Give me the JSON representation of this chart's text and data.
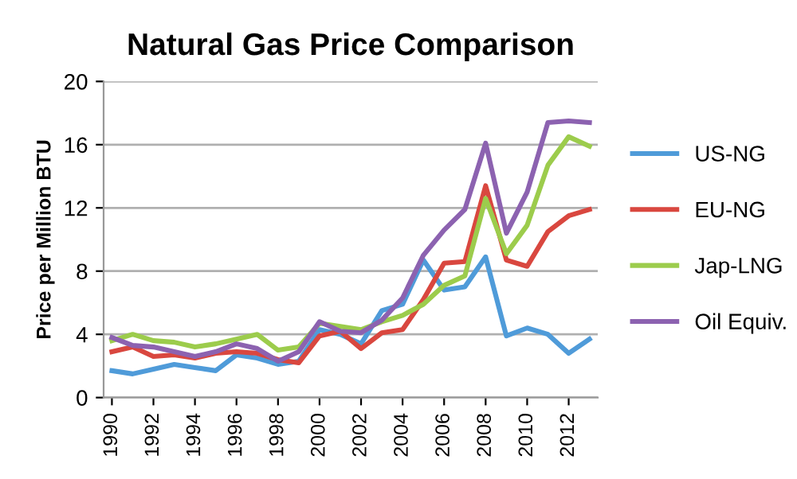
{
  "chart_data": {
    "type": "line",
    "title": "Natural Gas Price Comparison",
    "ylabel": "Price per Million BTU",
    "x": [
      1990,
      1991,
      1992,
      1993,
      1994,
      1995,
      1996,
      1997,
      1998,
      1999,
      2000,
      2001,
      2002,
      2003,
      2004,
      2005,
      2006,
      2007,
      2008,
      2009,
      2010,
      2011,
      2012,
      2013
    ],
    "series": [
      {
        "name": "US-NG",
        "color": "#4f9bd9",
        "values": [
          1.7,
          1.5,
          1.8,
          2.1,
          1.9,
          1.7,
          2.7,
          2.5,
          2.1,
          2.3,
          4.3,
          4.0,
          3.4,
          5.5,
          5.9,
          8.7,
          6.8,
          7.0,
          8.9,
          3.9,
          4.4,
          4.0,
          2.8,
          3.7
        ]
      },
      {
        "name": "EU-NG",
        "color": "#d9473f",
        "values": [
          2.9,
          3.2,
          2.6,
          2.7,
          2.5,
          2.8,
          2.9,
          2.8,
          2.4,
          2.2,
          3.9,
          4.2,
          3.1,
          4.1,
          4.3,
          6.2,
          8.5,
          8.6,
          13.4,
          8.7,
          8.3,
          10.5,
          11.5,
          11.9
        ]
      },
      {
        "name": "Jap-LNG",
        "color": "#9ccc4c",
        "values": [
          3.6,
          4.0,
          3.6,
          3.5,
          3.2,
          3.4,
          3.7,
          4.0,
          3.0,
          3.2,
          4.7,
          4.5,
          4.3,
          4.8,
          5.2,
          5.9,
          7.1,
          7.7,
          12.6,
          9.1,
          10.9,
          14.7,
          16.5,
          15.9
        ]
      },
      {
        "name": "Oil Equiv.",
        "color": "#8c62b0",
        "values": [
          3.8,
          3.3,
          3.2,
          2.9,
          2.6,
          2.9,
          3.4,
          3.1,
          2.3,
          2.9,
          4.8,
          4.2,
          4.1,
          4.9,
          6.3,
          9.0,
          10.6,
          11.9,
          16.1,
          10.4,
          13.0,
          17.4,
          17.5,
          17.4
        ]
      }
    ],
    "xlim": [
      1989.6,
      2013.4
    ],
    "xticks": [
      1990,
      1992,
      1994,
      1996,
      1998,
      2000,
      2002,
      2004,
      2006,
      2008,
      2010,
      2012
    ],
    "ylim": [
      0,
      20
    ],
    "yticks": [
      0,
      4,
      8,
      12,
      16,
      20
    ],
    "grid": "y",
    "legend": "right",
    "marker": "none",
    "line_style": "solid"
  }
}
